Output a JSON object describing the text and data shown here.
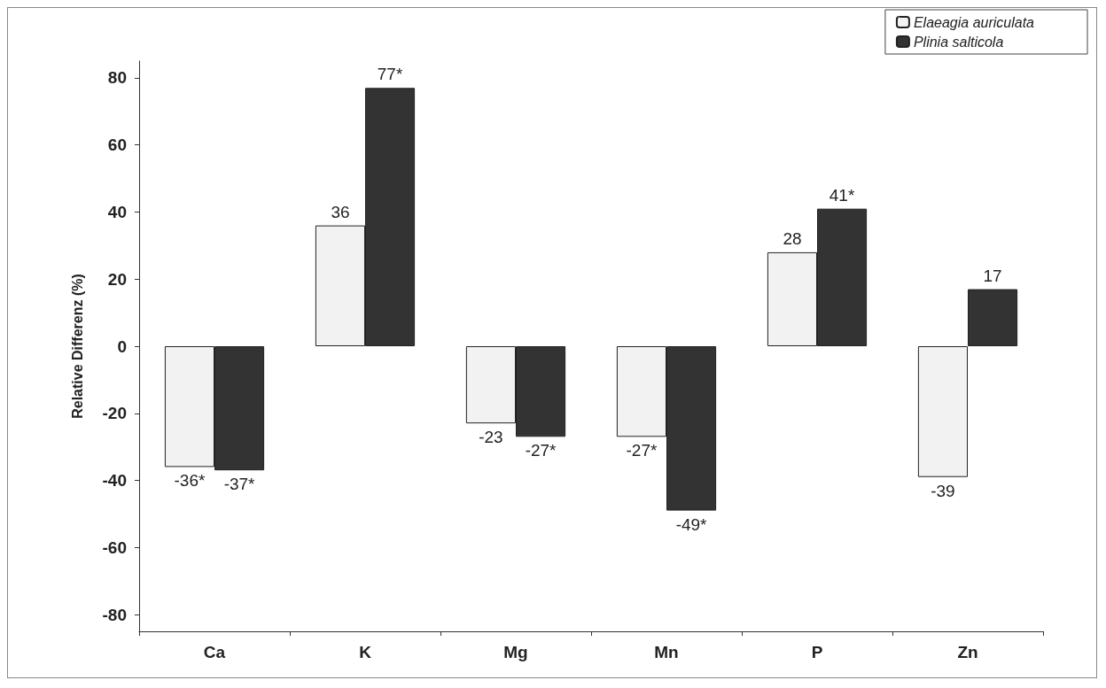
{
  "chart_data": {
    "type": "bar",
    "ylabel": "Relative Differenz (%)",
    "categories": [
      "Ca",
      "K",
      "Mg",
      "Mn",
      "P",
      "Zn"
    ],
    "series": [
      {
        "name": "Elaeagia auriculata",
        "color": "#f2f2f2",
        "values": [
          -36,
          36,
          -23,
          -27,
          28,
          -39
        ],
        "value_labels": [
          "-36*",
          "36",
          "-23",
          "-27*",
          "28",
          "-39"
        ]
      },
      {
        "name": "Plinia salticola",
        "color": "#333333",
        "values": [
          -37,
          77,
          -27,
          -49,
          41,
          17
        ],
        "value_labels": [
          "-37*",
          "77*",
          "-27*",
          "-49*",
          "41*",
          "17"
        ]
      }
    ],
    "ylim": [
      -85,
      85
    ],
    "yticks": [
      -80,
      -60,
      -40,
      -20,
      0,
      20,
      40,
      60,
      80
    ],
    "grid": false,
    "legend": "top right"
  }
}
